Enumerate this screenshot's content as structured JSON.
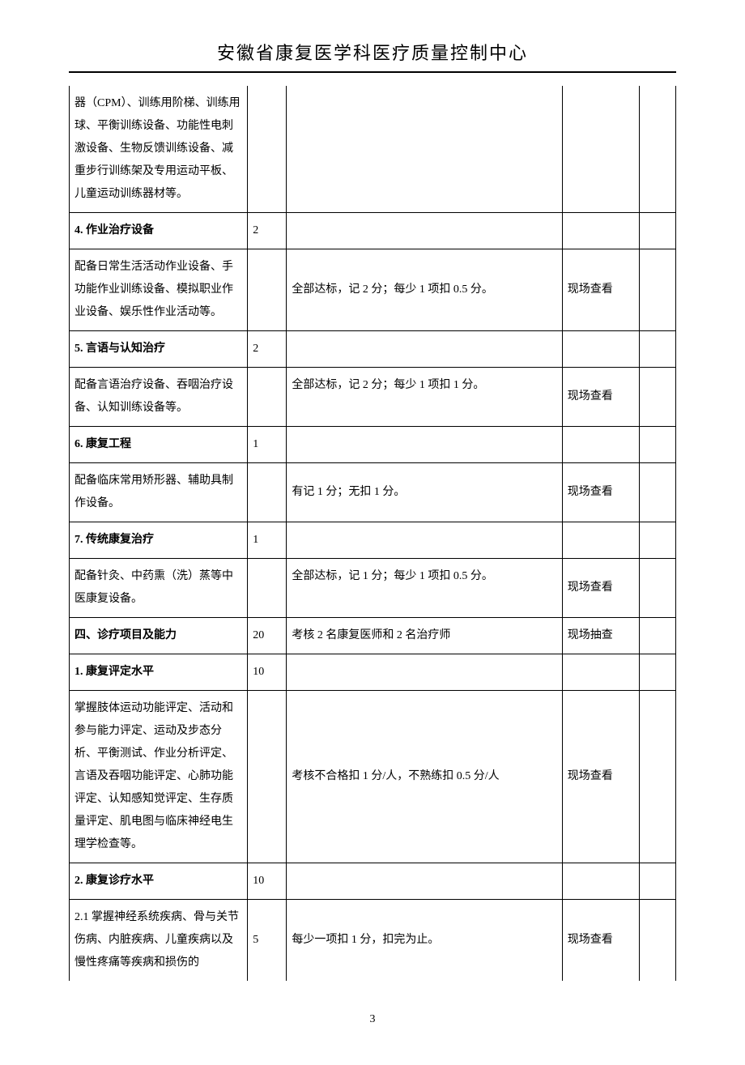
{
  "header": {
    "title": "安徽省康复医学科医疗质量控制中心"
  },
  "footer": {
    "page_number": "3"
  },
  "table": {
    "rows": [
      {
        "col1": "器（CPM）、训练用阶梯、训练用球、平衡训练设备、功能性电刺激设备、生物反馈训练设备、减重步行训练架及专用运动平板、儿童运动训练器材等。",
        "col1_bold": false,
        "col2": "",
        "col3": "",
        "col4": "",
        "col5": "",
        "first": true
      },
      {
        "col1": "4.  作业治疗设备",
        "col1_bold": true,
        "col2": "2",
        "col3": "",
        "col4": "",
        "col5": ""
      },
      {
        "col1": "配备日常生活活动作业设备、手功能作业训练设备、模拟职业作业设备、娱乐性作业活动等。",
        "col1_bold": false,
        "col2": "",
        "col3": "全部达标，记 2 分；每少 1 项扣 0.5 分。",
        "col4": "现场查看",
        "col5": ""
      },
      {
        "col1": "5.  言语与认知治疗",
        "col1_bold": true,
        "col2": "2",
        "col3": "",
        "col4": "",
        "col5": ""
      },
      {
        "col1": "配备言语治疗设备、吞咽治疗设备、认知训练设备等。",
        "col1_bold": false,
        "col2": "",
        "col3": "全部达标，记 2 分；每少 1 项扣 1 分。",
        "col4": "现场查看",
        "col5": "",
        "col3_valign": "top"
      },
      {
        "col1": "6. 康复工程",
        "col1_bold": true,
        "col2": "1",
        "col3": "",
        "col4": "",
        "col5": ""
      },
      {
        "col1": "配备临床常用矫形器、辅助具制作设备。",
        "col1_bold": false,
        "col2": "",
        "col3": "有记 1 分；无扣 1 分。",
        "col4": "现场查看",
        "col5": ""
      },
      {
        "col1": "7. 传统康复治疗",
        "col1_bold": true,
        "col2": "1",
        "col3": "",
        "col4": "",
        "col5": ""
      },
      {
        "col1": "配备针灸、中药熏（洗）蒸等中医康复设备。",
        "col1_bold": false,
        "col2": "",
        "col3": "全部达标，记 1 分；每少 1 项扣 0.5 分。",
        "col4": "现场查看",
        "col5": "",
        "col3_valign": "top"
      },
      {
        "col1": "四、诊疗项目及能力",
        "col1_bold": true,
        "col2": "20",
        "col3": "考核 2 名康复医师和 2 名治疗师",
        "col4": "现场抽查",
        "col5": ""
      },
      {
        "col1": "1. 康复评定水平",
        "col1_bold": true,
        "col2": "10",
        "col3": "",
        "col4": "",
        "col5": ""
      },
      {
        "col1": "掌握肢体运动功能评定、活动和参与能力评定、运动及步态分析、平衡测试、作业分析评定、言语及吞咽功能评定、心肺功能评定、认知感知觉评定、生存质量评定、肌电图与临床神经电生理学检查等。",
        "col1_bold": false,
        "col2": "",
        "col3": "考核不合格扣 1 分/人，不熟练扣 0.5 分/人",
        "col4": "现场查看",
        "col5": ""
      },
      {
        "col1": "2.  康复诊疗水平",
        "col1_bold": true,
        "col2": "10",
        "col3": "",
        "col4": "",
        "col5": ""
      },
      {
        "col1": "2.1 掌握神经系统疾病、骨与关节伤病、内脏疾病、儿童疾病以及慢性疼痛等疾病和损伤的",
        "col1_bold": false,
        "col2": "5",
        "col3": "每少一项扣 1 分，扣完为止。",
        "col4": "现场查看",
        "col5": "",
        "last": true
      }
    ]
  }
}
